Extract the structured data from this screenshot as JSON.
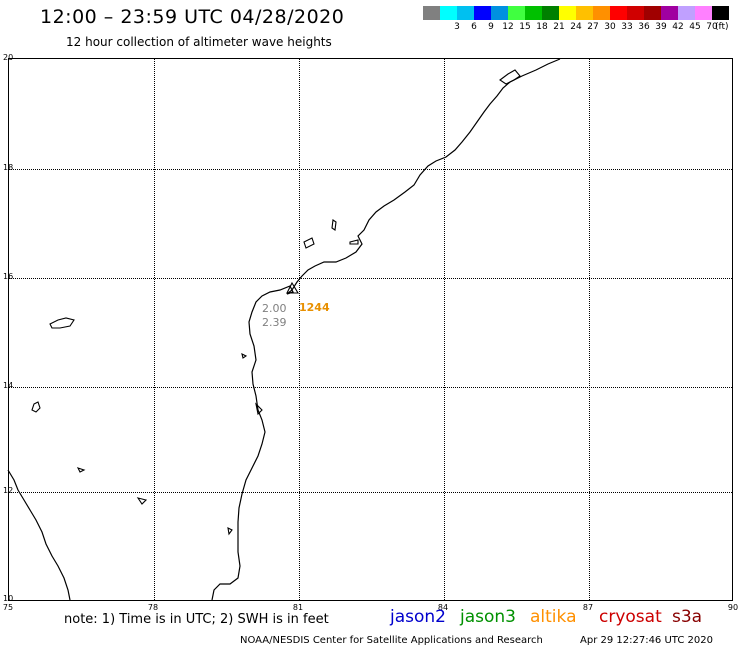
{
  "header": {
    "title": "12:00 – 23:59 UTC 04/28/2020",
    "subtitle": "12 hour collection of altimeter wave heights"
  },
  "legend": {
    "unit": "(ft)",
    "items": [
      {
        "color": "#808080",
        "label": ""
      },
      {
        "color": "#00ffff",
        "label": "3"
      },
      {
        "color": "#00c0f0",
        "label": "6"
      },
      {
        "color": "#0000ff",
        "label": "9"
      },
      {
        "color": "#0090e0",
        "label": "12"
      },
      {
        "color": "#40ff40",
        "label": "15"
      },
      {
        "color": "#00c000",
        "label": "18"
      },
      {
        "color": "#008000",
        "label": "21"
      },
      {
        "color": "#ffff00",
        "label": "24"
      },
      {
        "color": "#ffc000",
        "label": "27"
      },
      {
        "color": "#ff9000",
        "label": "30"
      },
      {
        "color": "#ff0000",
        "label": "33"
      },
      {
        "color": "#d00000",
        "label": "36"
      },
      {
        "color": "#a00000",
        "label": "39"
      },
      {
        "color": "#a000a0",
        "label": "42"
      },
      {
        "color": "#c0a0ff",
        "label": "45"
      },
      {
        "color": "#ff80ff",
        "label": "70"
      },
      {
        "color": "#000000",
        "label": ""
      }
    ]
  },
  "map": {
    "lat_labels": [
      "20",
      "18",
      "16",
      "14",
      "12",
      "10"
    ],
    "lon_labels": [
      "75",
      "78",
      "81",
      "84",
      "87",
      "90"
    ],
    "observations": [
      {
        "text": "2.00",
        "color": "#808080"
      },
      {
        "text": "2.39",
        "color": "#808080"
      },
      {
        "text": "1244",
        "color": "#e89000"
      }
    ]
  },
  "footer": {
    "note": "note: 1) Time is in UTC; 2) SWH is in feet",
    "satellites": [
      {
        "name": "jason2",
        "color": "#0000cc"
      },
      {
        "name": "jason3",
        "color": "#009000"
      },
      {
        "name": "altika",
        "color": "#ff9000"
      },
      {
        "name": "cryosat",
        "color": "#cc0000"
      },
      {
        "name": "s3a",
        "color": "#880000"
      }
    ],
    "credit": "NOAA/NESDIS Center for Satellite Applications and Research",
    "timestamp": "Apr 29 12:27:46 UTC 2020"
  }
}
